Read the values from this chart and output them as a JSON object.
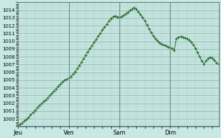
{
  "bg_color": "#c8e8e4",
  "plot_bg_color": "#c8e8e4",
  "line_color": "#2d6e2d",
  "marker": "+",
  "marker_size": 2.5,
  "marker_lw": 0.8,
  "line_width": 0.7,
  "ylim": [
    999,
    1015
  ],
  "yticks": [
    1000,
    1001,
    1002,
    1003,
    1004,
    1005,
    1006,
    1007,
    1008,
    1009,
    1010,
    1011,
    1012,
    1013,
    1014
  ],
  "xtick_labels": [
    "Jeu",
    "Ven",
    "Sam",
    "Dim"
  ],
  "xtick_positions": [
    0,
    24,
    48,
    72
  ],
  "grid_minor_color": "#a8c8c4",
  "grid_major_color": "#88aaa6",
  "vline_color": "#6a8a88",
  "x_values": [
    0,
    1,
    2,
    3,
    4,
    5,
    6,
    7,
    8,
    9,
    10,
    11,
    12,
    13,
    14,
    15,
    16,
    17,
    18,
    19,
    20,
    21,
    22,
    23,
    24,
    25,
    26,
    27,
    28,
    29,
    30,
    31,
    32,
    33,
    34,
    35,
    36,
    37,
    38,
    39,
    40,
    41,
    42,
    43,
    44,
    45,
    46,
    47,
    48,
    49,
    50,
    51,
    52,
    53,
    54,
    55,
    56,
    57,
    58,
    59,
    60,
    61,
    62,
    63,
    64,
    65,
    66,
    67,
    68,
    69,
    70,
    71,
    72,
    73,
    74,
    75,
    76,
    77,
    78,
    79,
    80,
    81,
    82,
    83,
    84,
    85,
    86,
    87,
    88,
    89,
    90,
    91,
    92,
    93,
    94,
    95
  ],
  "y_values": [
    999.2,
    999.3,
    999.5,
    999.7,
    999.9,
    1000.2,
    1000.5,
    1000.8,
    1001.1,
    1001.4,
    1001.7,
    1001.95,
    1002.2,
    1002.45,
    1002.7,
    1003.0,
    1003.3,
    1003.6,
    1003.85,
    1004.15,
    1004.45,
    1004.7,
    1004.95,
    1005.1,
    1005.25,
    1005.45,
    1005.75,
    1006.1,
    1006.5,
    1006.9,
    1007.3,
    1007.75,
    1008.2,
    1008.65,
    1009.05,
    1009.45,
    1009.85,
    1010.25,
    1010.65,
    1011.05,
    1011.45,
    1011.85,
    1012.2,
    1012.6,
    1012.95,
    1013.15,
    1013.25,
    1013.1,
    1013.1,
    1013.15,
    1013.35,
    1013.55,
    1013.75,
    1013.95,
    1014.15,
    1014.3,
    1014.15,
    1013.8,
    1013.45,
    1013.05,
    1012.6,
    1012.1,
    1011.6,
    1011.1,
    1010.7,
    1010.35,
    1010.05,
    1009.8,
    1009.6,
    1009.5,
    1009.4,
    1009.3,
    1009.2,
    1009.05,
    1008.85,
    1010.35,
    1010.5,
    1010.6,
    1010.55,
    1010.45,
    1010.35,
    1010.15,
    1009.85,
    1009.5,
    1009.1,
    1008.55,
    1008.0,
    1007.5,
    1007.05,
    1007.45,
    1007.75,
    1007.95,
    1007.85,
    1007.55,
    1007.25,
    1007.05
  ]
}
